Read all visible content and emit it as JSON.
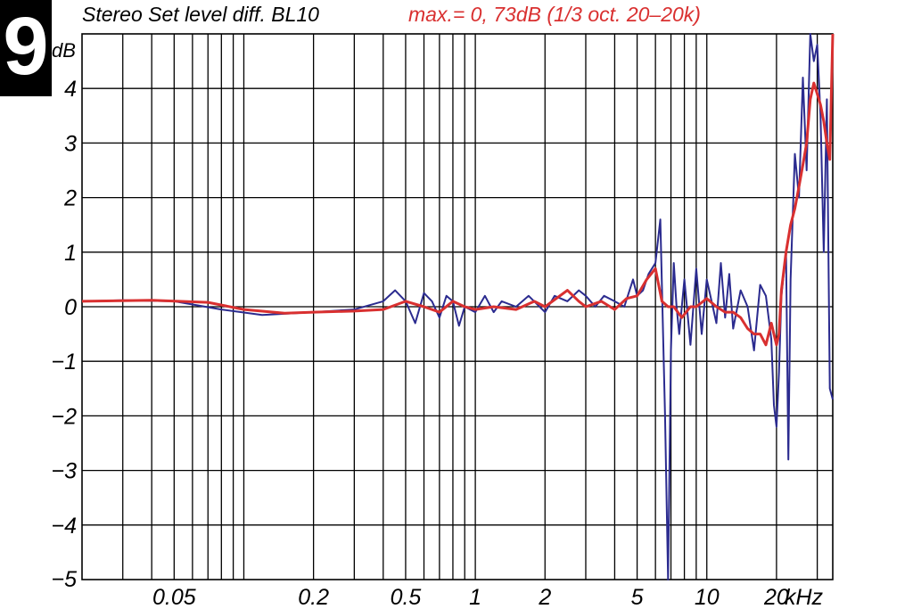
{
  "badge": {
    "label": "9"
  },
  "chart_data": {
    "type": "line",
    "title": "Stereo Set level diff. BL10",
    "subtitle": "max.= 0, 73dB (1/3 oct. 20–20k)",
    "ylabel": "dB",
    "xunit": "kHz",
    "xscale": "log",
    "xlim": [
      0.02,
      35
    ],
    "ylim": [
      -5,
      5
    ],
    "grid": true,
    "colors": {
      "raw": "#2b2b8f",
      "smoothed": "#d93030",
      "title": "#000000",
      "subtitle": "#d93030"
    },
    "y_ticks": [
      {
        "value": 4,
        "label": "4"
      },
      {
        "value": 3,
        "label": "3"
      },
      {
        "value": 2,
        "label": "2"
      },
      {
        "value": 1,
        "label": "1"
      },
      {
        "value": 0,
        "label": "0"
      },
      {
        "value": -1,
        "label": "−1"
      },
      {
        "value": -2,
        "label": "−2"
      },
      {
        "value": -3,
        "label": "−3"
      },
      {
        "value": -4,
        "label": "−4"
      },
      {
        "value": -5,
        "label": "−5"
      }
    ],
    "x_ticks": [
      {
        "value": 0.05,
        "label": "0.05"
      },
      {
        "value": 0.2,
        "label": "0.2"
      },
      {
        "value": 0.5,
        "label": "0.5"
      },
      {
        "value": 1,
        "label": "1"
      },
      {
        "value": 2,
        "label": "2"
      },
      {
        "value": 5,
        "label": "5"
      },
      {
        "value": 10,
        "label": "10"
      },
      {
        "value": 20,
        "label": "20"
      }
    ],
    "series": [
      {
        "x": [
          0.02,
          0.03,
          0.05,
          0.08,
          0.12,
          0.2,
          0.3,
          0.4,
          0.45,
          0.5,
          0.55,
          0.6,
          0.65,
          0.7,
          0.75,
          0.8,
          0.85,
          0.9,
          1.0,
          1.1,
          1.2,
          1.3,
          1.5,
          1.7,
          2.0,
          2.2,
          2.5,
          2.8,
          3.0,
          3.3,
          3.6,
          4.0,
          4.4,
          4.8,
          5.0,
          5.3,
          5.6,
          6.0,
          6.3,
          6.6,
          6.8,
          7.0,
          7.2,
          7.4,
          7.6,
          8.0,
          8.5,
          9.0,
          9.5,
          10,
          11,
          11.5,
          12,
          12.5,
          13,
          14,
          15,
          16,
          17,
          18,
          19,
          19.5,
          20,
          20.5,
          21,
          22,
          22.5,
          23,
          24,
          25,
          26,
          27,
          28,
          29,
          30,
          31,
          32,
          33,
          34,
          35
        ],
        "y": [
          0.1,
          0.12,
          0.1,
          -0.05,
          -0.15,
          -0.1,
          -0.05,
          0.1,
          0.3,
          0.1,
          -0.3,
          0.25,
          0.1,
          -0.2,
          0.2,
          0.1,
          -0.35,
          0.0,
          -0.1,
          0.2,
          -0.1,
          0.1,
          0.0,
          0.2,
          -0.1,
          0.2,
          0.1,
          0.3,
          0.2,
          0.0,
          0.2,
          0.1,
          0.0,
          0.5,
          0.2,
          0.3,
          0.6,
          0.8,
          1.6,
          -2.0,
          -5.0,
          -0.8,
          0.8,
          0.0,
          -0.5,
          0.5,
          -0.7,
          0.7,
          -0.5,
          0.5,
          -0.3,
          0.8,
          -0.2,
          0.6,
          -0.4,
          0.3,
          0.0,
          -0.8,
          0.4,
          0.2,
          -0.6,
          -1.8,
          -2.2,
          -1.2,
          0.2,
          1.0,
          -2.8,
          0.5,
          2.8,
          2.0,
          4.2,
          2.5,
          5.0,
          4.5,
          4.8,
          3.5,
          1.0,
          3.8,
          -1.5,
          -1.7
        ]
      },
      {
        "x": [
          0.02,
          0.04,
          0.07,
          0.1,
          0.15,
          0.2,
          0.3,
          0.4,
          0.5,
          0.6,
          0.7,
          0.8,
          0.9,
          1.0,
          1.2,
          1.5,
          1.8,
          2.0,
          2.5,
          2.8,
          3.0,
          3.5,
          4.0,
          4.5,
          5.0,
          5.5,
          6.0,
          6.4,
          6.8,
          7.2,
          7.8,
          8.5,
          9.0,
          10,
          11,
          12,
          13,
          14,
          15,
          16,
          17,
          18,
          19,
          20,
          20.5,
          21,
          22,
          23,
          24,
          25,
          26,
          27,
          28,
          29,
          30,
          31,
          32,
          33,
          34,
          35
        ],
        "y": [
          0.1,
          0.12,
          0.08,
          -0.05,
          -0.12,
          -0.1,
          -0.08,
          -0.05,
          0.1,
          0.0,
          -0.1,
          0.1,
          0.0,
          -0.05,
          0.0,
          -0.05,
          0.1,
          0.0,
          0.3,
          0.1,
          0.0,
          0.1,
          -0.05,
          0.15,
          0.2,
          0.5,
          0.7,
          0.1,
          0.0,
          0.0,
          -0.2,
          0.0,
          0.0,
          0.15,
          0.0,
          -0.1,
          -0.1,
          -0.2,
          -0.4,
          -0.5,
          -0.5,
          -0.7,
          -0.3,
          -0.7,
          -0.5,
          0.3,
          1.0,
          1.5,
          1.8,
          2.2,
          2.6,
          3.0,
          3.8,
          4.1,
          3.9,
          3.7,
          3.4,
          3.0,
          2.7,
          5.0
        ]
      }
    ]
  }
}
